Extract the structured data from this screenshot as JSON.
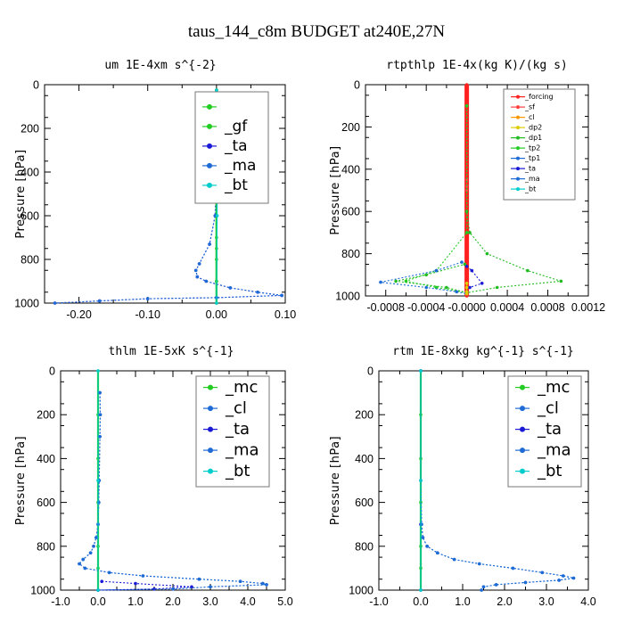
{
  "title": "taus_144_c8m  BUDGET at240E,27N",
  "colors": {
    "mc": "#22cc22",
    "gf": "#22cc22",
    "cl": "#1e6bd6",
    "ta": "#1a1ad6",
    "ma": "#1e6bd6",
    "bt": "#00cccc",
    "forcing": "#ff2020",
    "sf": "#ff4040",
    "dp2": "#ddcc00",
    "dp1": "#22bb22",
    "tp2": "#22cc22",
    "tp1": "#1e6bd6"
  },
  "chart_data": [
    {
      "type": "line",
      "title": "um  1E-4xm s^{-2}",
      "ylabel": "Pressure [hPa]",
      "xlim": [
        -0.25,
        0.1
      ],
      "ylim": [
        1000,
        0
      ],
      "xticks": [
        "-0.20",
        "-0.10",
        "0.00",
        "0.10"
      ],
      "xtick_values": [
        -0.2,
        -0.1,
        0.0,
        0.1
      ],
      "yticks": [
        "0",
        "200",
        "400",
        "600",
        "800",
        "1000"
      ],
      "ytick_values": [
        0,
        200,
        400,
        600,
        800,
        1000
      ],
      "legend_size": 17,
      "legend": [
        "",
        "_gf",
        "_ta",
        "_ma",
        "_bt"
      ],
      "series": [
        {
          "key": "mc",
          "points": [
            [
              0,
              25
            ],
            [
              0,
              100
            ],
            [
              0,
              200
            ],
            [
              0,
              300
            ],
            [
              0,
              400
            ],
            [
              0,
              500
            ],
            [
              0,
              600
            ],
            [
              0,
              700
            ],
            [
              0,
              800
            ],
            [
              0,
              900
            ],
            [
              0,
              1000
            ]
          ]
        },
        {
          "key": "gf",
          "points": [
            [
              0,
              25
            ],
            [
              0,
              150
            ],
            [
              0,
              300
            ],
            [
              0,
              450
            ],
            [
              0,
              600
            ],
            [
              0,
              750
            ],
            [
              0,
              900
            ],
            [
              0,
              1000
            ]
          ]
        },
        {
          "key": "ta",
          "points": [
            [
              0.003,
              100
            ],
            [
              0.005,
              130
            ],
            [
              0.008,
              160
            ],
            [
              0.005,
              200
            ],
            [
              0.003,
              260
            ],
            [
              0.002,
              300
            ],
            [
              0.0,
              400
            ],
            [
              -0.002,
              600
            ],
            [
              -0.01,
              730
            ],
            [
              -0.025,
              820
            ],
            [
              -0.03,
              850
            ],
            [
              -0.028,
              880
            ],
            [
              -0.015,
              900
            ],
            [
              0.02,
              930
            ],
            [
              0.06,
              950
            ],
            [
              0.095,
              965
            ],
            [
              0.0,
              975
            ],
            [
              -0.1,
              980
            ],
            [
              -0.17,
              990
            ],
            [
              -0.235,
              1000
            ]
          ]
        },
        {
          "key": "ma",
          "points": [
            [
              0.003,
              100
            ],
            [
              0.005,
              130
            ],
            [
              0.008,
              160
            ],
            [
              0.005,
              200
            ],
            [
              0.003,
              260
            ],
            [
              0.002,
              300
            ],
            [
              0.0,
              400
            ],
            [
              -0.002,
              600
            ],
            [
              -0.01,
              730
            ],
            [
              -0.025,
              820
            ],
            [
              -0.03,
              850
            ],
            [
              -0.028,
              880
            ],
            [
              -0.015,
              900
            ],
            [
              0.02,
              930
            ],
            [
              0.06,
              950
            ],
            [
              0.095,
              965
            ],
            [
              0.0,
              975
            ],
            [
              -0.1,
              980
            ],
            [
              -0.17,
              990
            ],
            [
              -0.235,
              1000
            ]
          ]
        },
        {
          "key": "bt",
          "points": [
            [
              0,
              25
            ],
            [
              0.001,
              300
            ],
            [
              0.001,
              600
            ],
            [
              0.0,
              1000
            ]
          ]
        }
      ]
    },
    {
      "type": "line",
      "title": "rtpthlp  1E-4x(kg K)/(kg s)",
      "ylabel": "Pressure [hPa]",
      "xlim": [
        -0.001,
        0.0012
      ],
      "ylim": [
        1000,
        0
      ],
      "xticks": [
        "-0.0008",
        "-0.0004",
        "-0.0000",
        "0.0004",
        "0.0008",
        "0.0012"
      ],
      "xtick_values": [
        -0.0008,
        -0.0004,
        0.0,
        0.0004,
        0.0008,
        0.0012
      ],
      "yticks": [
        "0",
        "200",
        "400",
        "600",
        "800",
        "1000"
      ],
      "ytick_values": [
        0,
        200,
        400,
        600,
        800,
        1000
      ],
      "legend_size": 9,
      "legend": [
        "_forcing",
        "_sf",
        "_cl",
        "_dp2",
        "_dp1",
        "_tp2",
        "_tp1",
        "_ta",
        "_ma",
        "_bt"
      ],
      "series": [
        {
          "key": "forcing",
          "points": [
            [
              0,
              0
            ],
            [
              0,
              500
            ],
            [
              0,
              1000
            ]
          ]
        },
        {
          "key": "sf",
          "points": [
            [
              0,
              450
            ],
            [
              0,
              480
            ],
            [
              0,
              500
            ]
          ]
        },
        {
          "key": "dp1",
          "points": [
            [
              0,
              100
            ],
            [
              0,
              600
            ],
            [
              3e-05,
              700
            ],
            [
              0.0002,
              800
            ],
            [
              0.0006,
              880
            ],
            [
              0.00093,
              930
            ],
            [
              0.0003,
              960
            ],
            [
              0,
              985
            ],
            [
              -0.0002,
              960
            ],
            [
              -0.0007,
              930
            ],
            [
              -0.0004,
              900
            ],
            [
              -2e-05,
              850
            ]
          ]
        },
        {
          "key": "tp2",
          "points": [
            [
              0,
              100
            ],
            [
              0,
              700
            ],
            [
              -0.0003,
              880
            ],
            [
              -0.0006,
              930
            ],
            [
              -0.0003,
              960
            ],
            [
              0,
              985
            ]
          ]
        },
        {
          "key": "tp1",
          "points": [
            [
              -5e-05,
              840
            ],
            [
              -0.0003,
              880
            ],
            [
              -0.00085,
              935
            ],
            [
              -0.0004,
              960
            ],
            [
              -0.0001,
              980
            ],
            [
              0,
              990
            ]
          ]
        },
        {
          "key": "ta",
          "points": [
            [
              0,
              860
            ],
            [
              5e-05,
              880
            ],
            [
              0.00015,
              940
            ],
            [
              3e-05,
              960
            ],
            [
              0,
              980
            ]
          ]
        },
        {
          "key": "dp2",
          "points": [
            [
              0,
              940
            ],
            [
              0,
              960
            ],
            [
              0,
              980
            ],
            [
              0,
              990
            ]
          ]
        }
      ]
    },
    {
      "type": "line",
      "title": "thlm  1E-5xK s^{-1}",
      "ylabel": "Pressure [hPa]",
      "xlim": [
        -1.0,
        5.0
      ],
      "ylim": [
        1000,
        0
      ],
      "xticks": [
        "-1.0",
        "0.0",
        "1.0",
        "2.0",
        "3.0",
        "4.0",
        "5.0"
      ],
      "xtick_values": [
        -1,
        0,
        1,
        2,
        3,
        4,
        5
      ],
      "yticks": [
        "0",
        "200",
        "400",
        "600",
        "800",
        "1000"
      ],
      "ytick_values": [
        0,
        200,
        400,
        600,
        800,
        1000
      ],
      "legend_size": 17,
      "legend": [
        "_mc",
        "_cl",
        "_ta",
        "_ma",
        "_bt"
      ],
      "series": [
        {
          "key": "mc",
          "points": [
            [
              0,
              0
            ],
            [
              0,
              200
            ],
            [
              0,
              400
            ],
            [
              0,
              600
            ],
            [
              0,
              800
            ],
            [
              0,
              900
            ],
            [
              0,
              1000
            ]
          ]
        },
        {
          "key": "cl",
          "points": [
            [
              0.05,
              100
            ],
            [
              0.06,
              200
            ],
            [
              0.05,
              300
            ],
            [
              0.03,
              500
            ],
            [
              0.02,
              600
            ],
            [
              0.0,
              700
            ],
            [
              -0.05,
              760
            ],
            [
              -0.12,
              800
            ],
            [
              -0.2,
              830
            ],
            [
              -0.4,
              860
            ],
            [
              -0.5,
              880
            ],
            [
              -0.35,
              900
            ],
            [
              0.3,
              920
            ],
            [
              1.2,
              935
            ],
            [
              2.7,
              950
            ],
            [
              3.8,
              960
            ],
            [
              4.4,
              970
            ],
            [
              4.5,
              975
            ],
            [
              3.0,
              985
            ],
            [
              2.0,
              995
            ],
            [
              0.0,
              1000
            ]
          ]
        },
        {
          "key": "ta",
          "points": [
            [
              0.1,
              960
            ],
            [
              1.0,
              970
            ],
            [
              2.5,
              985
            ],
            [
              1.5,
              995
            ],
            [
              0.0,
              1000
            ]
          ]
        },
        {
          "key": "ma",
          "points": [
            [
              0.05,
              100
            ],
            [
              0.06,
              200
            ],
            [
              0.05,
              300
            ],
            [
              0.03,
              500
            ],
            [
              0.02,
              600
            ],
            [
              0.0,
              700
            ],
            [
              -0.05,
              760
            ],
            [
              -0.12,
              800
            ],
            [
              -0.2,
              830
            ],
            [
              -0.4,
              860
            ],
            [
              -0.5,
              880
            ],
            [
              -0.35,
              900
            ],
            [
              0.3,
              920
            ],
            [
              1.2,
              935
            ],
            [
              2.7,
              950
            ],
            [
              3.8,
              960
            ],
            [
              4.4,
              970
            ],
            [
              4.5,
              975
            ],
            [
              3.0,
              985
            ],
            [
              2.0,
              995
            ],
            [
              0.0,
              1000
            ]
          ]
        },
        {
          "key": "bt",
          "points": [
            [
              0,
              0
            ],
            [
              0,
              500
            ],
            [
              0,
              1000
            ]
          ]
        }
      ]
    },
    {
      "type": "line",
      "title": "rtm  1E-8xkg kg^{-1} s^{-1}",
      "ylabel": "Pressure [hPa]",
      "xlim": [
        -1.0,
        4.0
      ],
      "ylim": [
        1000,
        0
      ],
      "xticks": [
        "-1.0",
        "0.0",
        "1.0",
        "2.0",
        "3.0",
        "4.0"
      ],
      "xtick_values": [
        -1,
        0,
        1,
        2,
        3,
        4
      ],
      "yticks": [
        "0",
        "200",
        "400",
        "600",
        "800",
        "1000"
      ],
      "ytick_values": [
        0,
        200,
        400,
        600,
        800,
        1000
      ],
      "legend_size": 17,
      "legend": [
        "_mc",
        "_cl",
        "_ta",
        "_ma",
        "_bt"
      ],
      "series": [
        {
          "key": "mc",
          "points": [
            [
              0,
              0
            ],
            [
              0,
              200
            ],
            [
              0,
              400
            ],
            [
              0,
              600
            ],
            [
              0,
              800
            ],
            [
              0,
              900
            ],
            [
              0,
              1000
            ]
          ]
        },
        {
          "key": "cl",
          "points": [
            [
              0,
              0
            ],
            [
              0.0,
              500
            ],
            [
              0.02,
              700
            ],
            [
              0.05,
              760
            ],
            [
              0.15,
              800
            ],
            [
              0.4,
              830
            ],
            [
              0.8,
              860
            ],
            [
              1.4,
              880
            ],
            [
              2.2,
              900
            ],
            [
              2.9,
              920
            ],
            [
              3.4,
              935
            ],
            [
              3.65,
              945
            ],
            [
              3.3,
              955
            ],
            [
              2.5,
              965
            ],
            [
              1.8,
              975
            ],
            [
              1.5,
              985
            ],
            [
              1.45,
              1000
            ]
          ]
        },
        {
          "key": "ta",
          "points": [
            [
              0,
              0
            ],
            [
              0,
              700
            ],
            [
              0,
              1000
            ]
          ]
        },
        {
          "key": "ma",
          "points": [
            [
              0,
              0
            ],
            [
              0.0,
              500
            ],
            [
              0.02,
              700
            ],
            [
              0.05,
              760
            ],
            [
              0.15,
              800
            ],
            [
              0.4,
              830
            ],
            [
              0.8,
              860
            ],
            [
              1.4,
              880
            ],
            [
              2.2,
              900
            ],
            [
              2.9,
              920
            ],
            [
              3.4,
              935
            ],
            [
              3.65,
              945
            ],
            [
              3.3,
              955
            ],
            [
              2.5,
              965
            ],
            [
              1.8,
              975
            ],
            [
              1.5,
              985
            ],
            [
              1.45,
              1000
            ]
          ]
        },
        {
          "key": "bt",
          "points": [
            [
              0,
              0
            ],
            [
              0,
              500
            ],
            [
              0,
              1000
            ]
          ]
        }
      ]
    }
  ]
}
